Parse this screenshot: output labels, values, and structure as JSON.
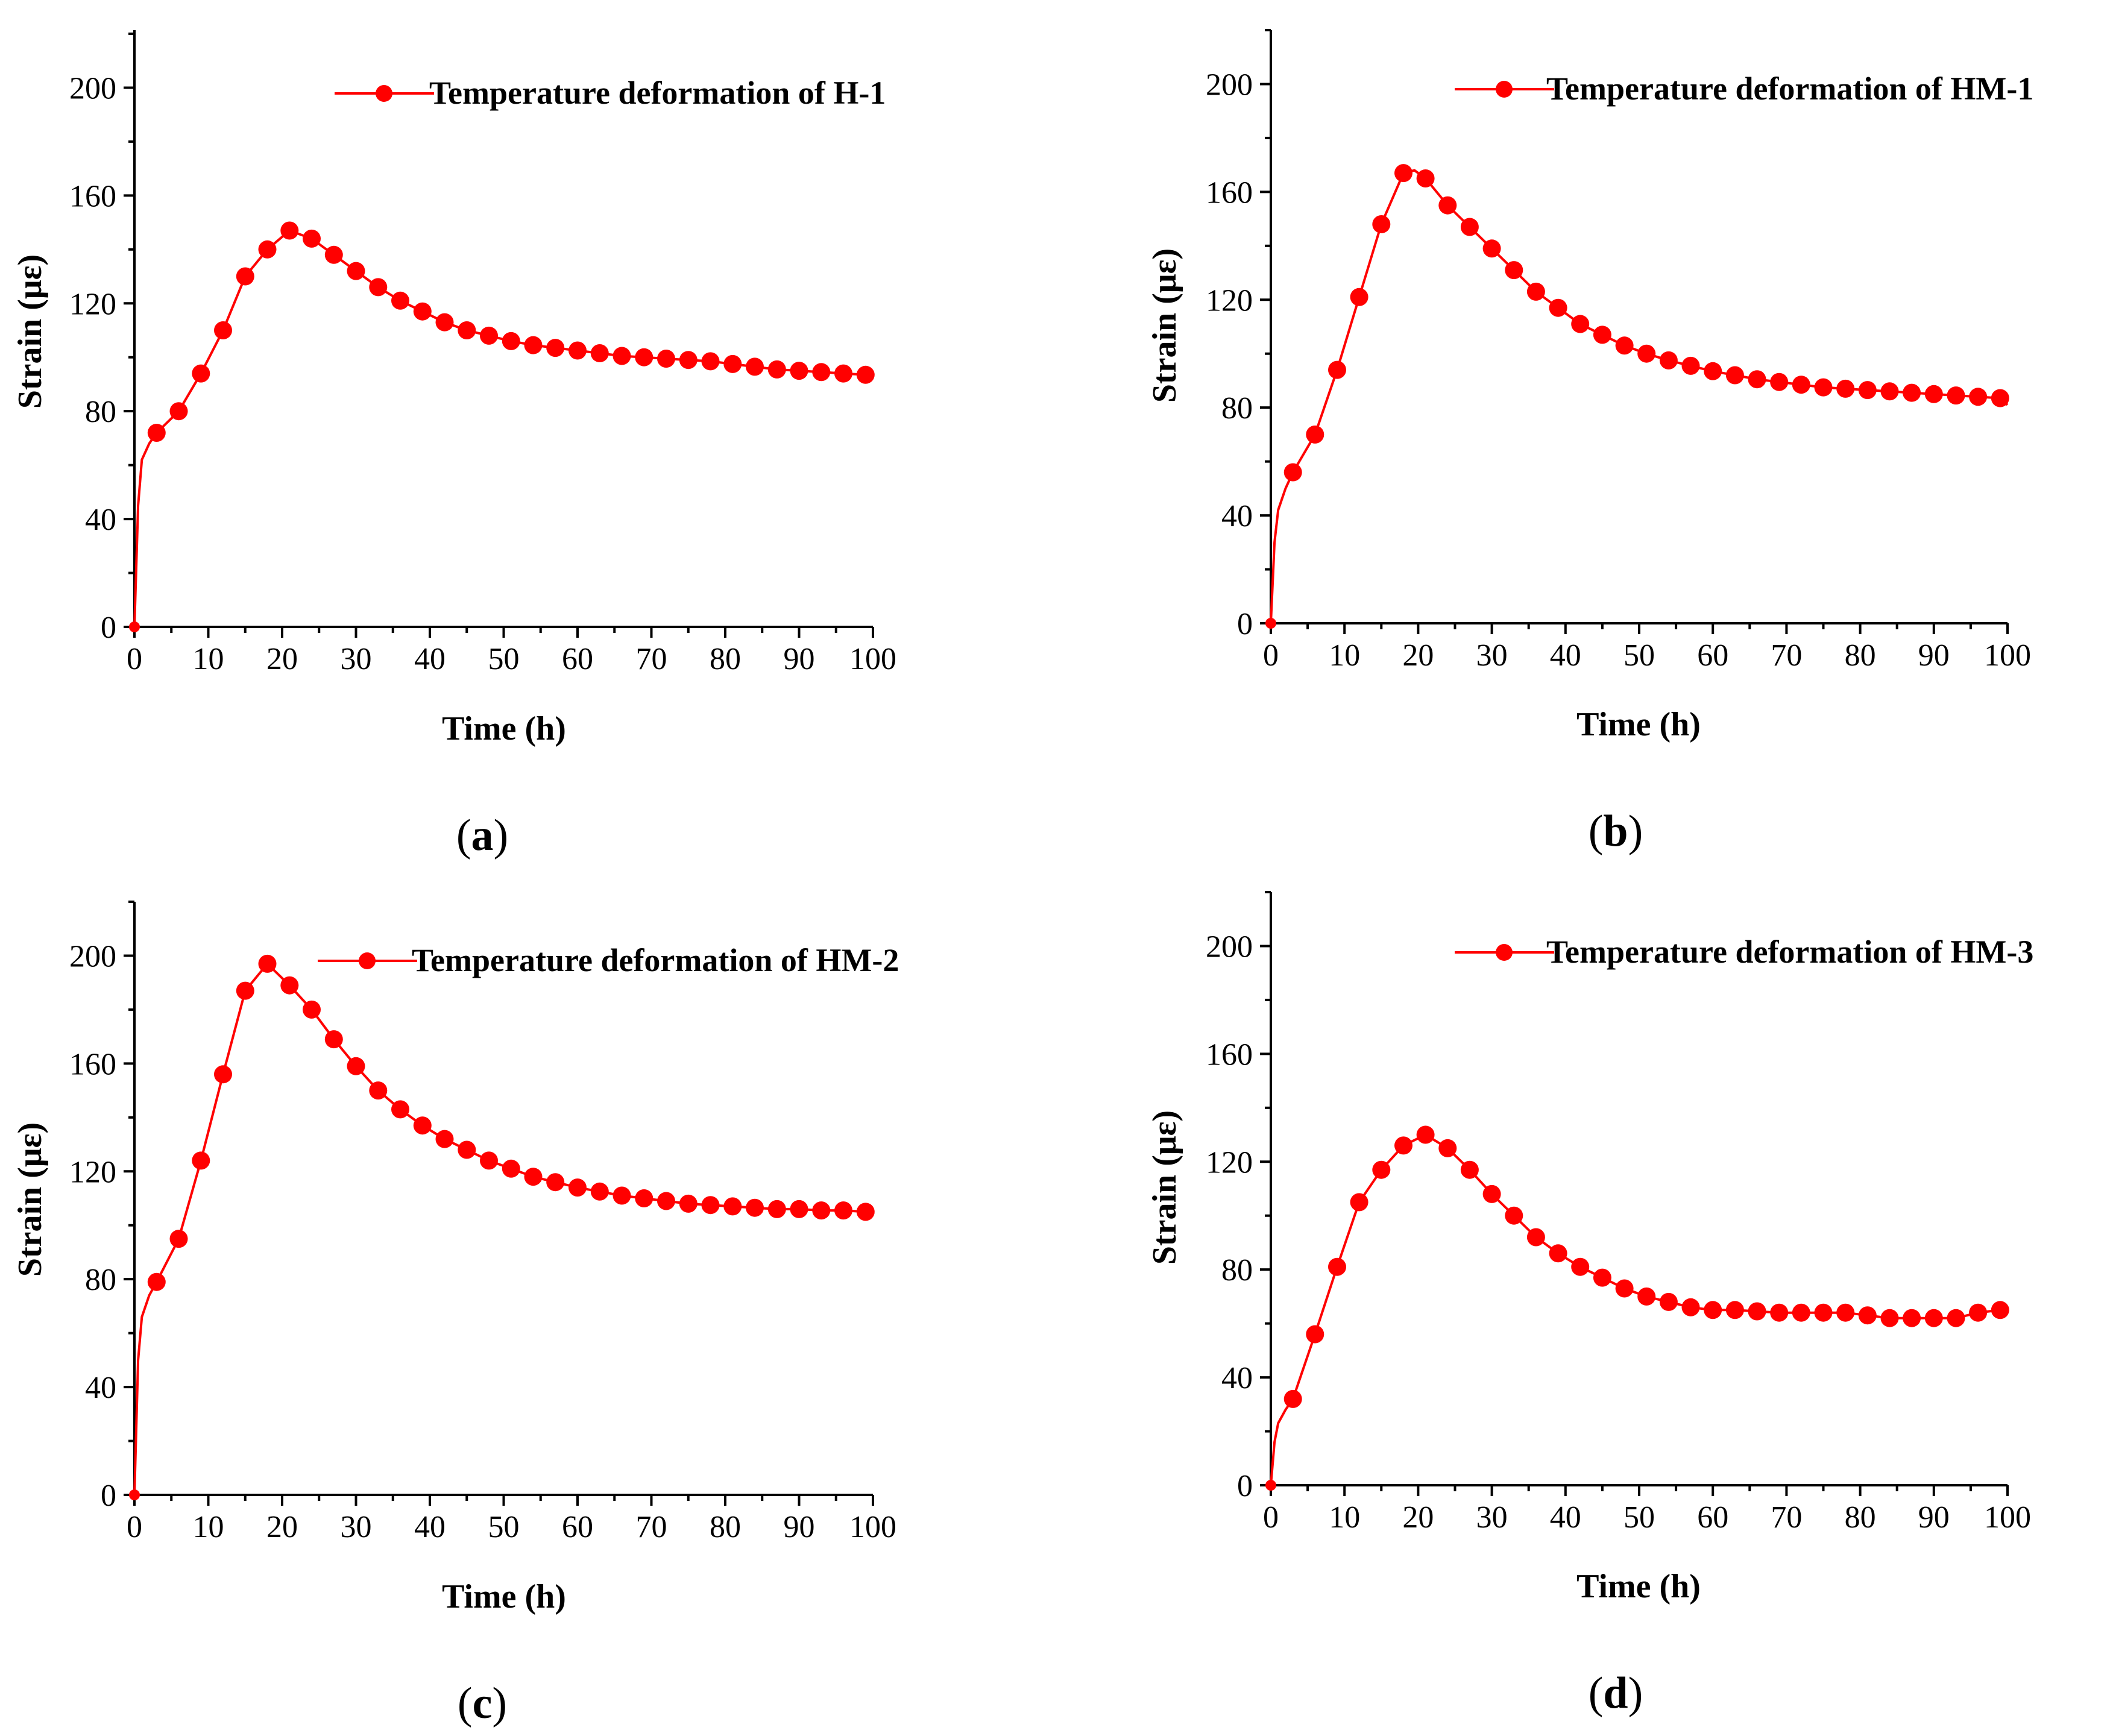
{
  "colors": {
    "series": "#ff0000",
    "axis": "#000000"
  },
  "chart_data": [
    {
      "type": "line",
      "panel": "a",
      "xlabel": "Time (h)",
      "ylabel": "Strain (με)",
      "xlim": [
        0,
        100
      ],
      "ylim": [
        0,
        220
      ],
      "xticks": [
        0,
        10,
        20,
        30,
        40,
        50,
        60,
        70,
        80,
        90,
        100
      ],
      "yticks": [
        0,
        40,
        80,
        120,
        160,
        200
      ],
      "legend": "top-right",
      "series": [
        {
          "name": "Temperature deformation of H-1",
          "line_x": [
            0,
            0.5,
            1,
            2,
            3,
            6,
            9,
            12,
            15,
            18,
            21,
            24,
            27,
            30,
            33,
            36,
            39,
            42,
            45,
            48,
            51,
            54,
            57,
            60,
            63,
            66,
            69,
            72,
            75,
            78,
            81,
            84,
            87,
            90,
            93,
            96,
            99,
            100
          ],
          "line_y": [
            0,
            45,
            62,
            68,
            72,
            80,
            94,
            110,
            130,
            140,
            147,
            144,
            138,
            132,
            126,
            121,
            117,
            113,
            110,
            108,
            106,
            104.5,
            103.5,
            102.5,
            101.5,
            100.5,
            100,
            99.5,
            99,
            98.5,
            97.5,
            96.5,
            95.5,
            95,
            94.5,
            94,
            93.5,
            93
          ],
          "x": [
            0,
            3,
            6,
            9,
            12,
            15,
            18,
            21,
            24,
            27,
            30,
            33,
            36,
            39,
            42,
            45,
            48,
            51,
            54,
            57,
            60,
            63,
            66,
            69,
            72,
            75,
            78,
            81,
            84,
            87,
            90,
            93,
            96,
            99
          ],
          "y": [
            0,
            72,
            80,
            94,
            110,
            130,
            140,
            147,
            144,
            138,
            132,
            126,
            121,
            117,
            113,
            110,
            108,
            106,
            104.5,
            103.5,
            102.5,
            101.5,
            100.5,
            100,
            99.5,
            99,
            98.5,
            97.5,
            96.5,
            95.5,
            95,
            94.5,
            94,
            93.5
          ]
        }
      ],
      "panel_label": {
        "open": "(",
        "letter": "a",
        "close": ")"
      }
    },
    {
      "type": "line",
      "panel": "b",
      "xlabel": "Time (h)",
      "ylabel": "Strain (με)",
      "xlim": [
        0,
        100
      ],
      "ylim": [
        0,
        220
      ],
      "xticks": [
        0,
        10,
        20,
        30,
        40,
        50,
        60,
        70,
        80,
        90,
        100
      ],
      "yticks": [
        0,
        40,
        80,
        120,
        160,
        200
      ],
      "legend": "top-right",
      "series": [
        {
          "name": "Temperature deformation of HM-1",
          "line_x": [
            0,
            0.5,
            1,
            2,
            3,
            6,
            9,
            12,
            15,
            18,
            19.5,
            21,
            24,
            27,
            30,
            33,
            36,
            39,
            42,
            45,
            48,
            51,
            54,
            57,
            60,
            63,
            66,
            69,
            72,
            75,
            78,
            81,
            84,
            87,
            90,
            93,
            96,
            99,
            100
          ],
          "line_y": [
            0,
            30,
            42,
            50,
            56,
            70,
            94,
            121,
            148,
            167,
            168,
            165,
            155,
            147,
            139,
            131,
            123,
            117,
            111,
            107,
            103,
            100,
            97.5,
            95.5,
            93.5,
            92,
            90.5,
            89.5,
            88.5,
            87.5,
            87,
            86.5,
            86,
            85.5,
            85,
            84.5,
            84,
            83.5,
            81
          ]
        }
      ],
      "panel_label": {
        "open": "(",
        "letter": "b",
        "close": ")"
      }
    },
    {
      "type": "line",
      "panel": "c",
      "xlabel": "Time (h)",
      "ylabel": "Strain (με)",
      "xlim": [
        0,
        100
      ],
      "ylim": [
        0,
        220
      ],
      "xticks": [
        0,
        10,
        20,
        30,
        40,
        50,
        60,
        70,
        80,
        90,
        100
      ],
      "yticks": [
        0,
        40,
        80,
        120,
        160,
        200
      ],
      "legend": "top-right",
      "series": [
        {
          "name": "Temperature deformation of HM-2",
          "line_x": [
            0,
            0.5,
            1,
            2,
            3,
            6,
            9,
            12,
            15,
            18,
            21,
            24,
            27,
            30,
            33,
            36,
            39,
            42,
            45,
            48,
            51,
            54,
            57,
            60,
            63,
            66,
            69,
            72,
            75,
            78,
            81,
            84,
            87,
            90,
            93,
            96,
            99,
            100
          ],
          "line_y": [
            0,
            50,
            66,
            74,
            79,
            95,
            124,
            156,
            187,
            197,
            189,
            180,
            169,
            159,
            150,
            143,
            137,
            132,
            128,
            124,
            121,
            118,
            116,
            114,
            112.5,
            111,
            110,
            109,
            108,
            107.5,
            107,
            106.5,
            106,
            106,
            105.5,
            105.5,
            105,
            105
          ]
        }
      ],
      "panel_label": {
        "open": "(",
        "letter": "c",
        "close": ")"
      }
    },
    {
      "type": "line",
      "panel": "d",
      "xlabel": "Time (h)",
      "ylabel": "Strain (με)",
      "xlim": [
        0,
        100
      ],
      "ylim": [
        0,
        220
      ],
      "xticks": [
        0,
        10,
        20,
        30,
        40,
        50,
        60,
        70,
        80,
        90,
        100
      ],
      "yticks": [
        0,
        40,
        80,
        120,
        160,
        200
      ],
      "legend": "top-right",
      "series": [
        {
          "name": "Temperature deformation of HM-3",
          "line_x": [
            0,
            0.5,
            1,
            2,
            3,
            6,
            9,
            12,
            15,
            18,
            21,
            24,
            27,
            30,
            33,
            36,
            39,
            42,
            45,
            48,
            51,
            54,
            57,
            60,
            63,
            66,
            69,
            72,
            75,
            78,
            81,
            84,
            87,
            90,
            93,
            96,
            99,
            100
          ],
          "line_y": [
            0,
            16,
            23,
            28,
            32,
            56,
            81,
            105,
            117,
            126,
            130,
            125,
            117,
            108,
            100,
            92,
            86,
            81,
            77,
            73,
            70,
            68,
            66,
            65,
            65,
            64.5,
            64,
            64,
            64,
            64,
            63,
            62,
            62,
            62,
            62,
            64,
            65,
            64
          ]
        }
      ],
      "panel_label": {
        "open": "(",
        "letter": "d",
        "close": ")"
      }
    }
  ]
}
